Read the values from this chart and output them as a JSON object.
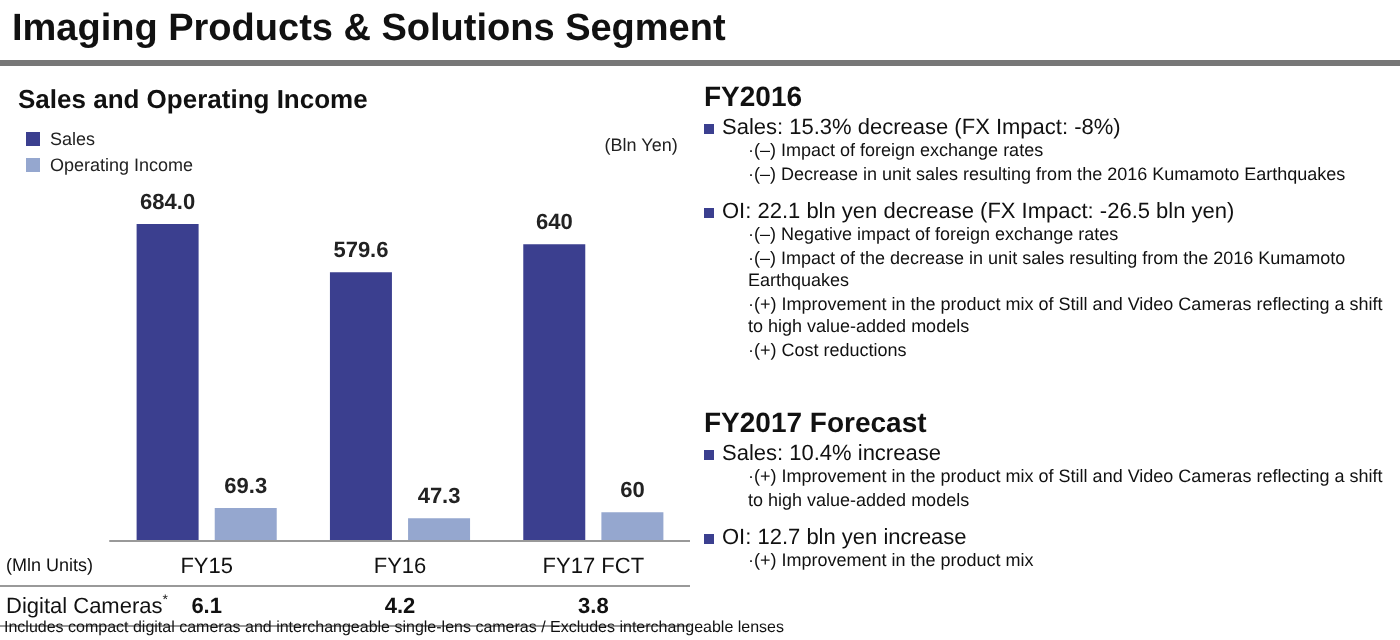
{
  "chart_data": [
    {
      "type": "bar",
      "title": "Imaging Products & Solutions Segment",
      "subtitle": "Sales and Operating Income",
      "ylabel": "(Bln Yen)",
      "categories": [
        "FY15",
        "FY16",
        "FY17 FCT"
      ],
      "series": [
        {
          "name": "Sales",
          "color": "#3b3f8f",
          "values": [
            684.0,
            579.6,
            640
          ],
          "value_labels": [
            "684.0",
            "579.6",
            "640"
          ]
        },
        {
          "name": "Operating Income",
          "color": "#95a7cf",
          "values": [
            69.3,
            47.3,
            60
          ],
          "value_labels": [
            "69.3",
            "47.3",
            "60"
          ]
        }
      ],
      "legend": "top left",
      "annotations": [
        "(Mln Units)",
        "Digital Cameras$^{*}$",
        "6.1",
        "4.2",
        "3.8",
        "Includes compact digital cameras and interchangeable single-lens cameras / Excludes interchangeable lenses"
      ]
    },
    {
      "type": "other",
      "title": "FY2016",
      "subtitle": "Sales: 15.3% decrease (FX Impact:  -8%)",
      "annotations": [
        "·(–) Impact of foreign exchange rates",
        "·(–) Decrease in unit sales resulting from the 2016 Kumamoto Earthquakes"
      ]
    },
    {
      "type": "other",
      "subtitle": "OI: 22.1 bln yen decrease (FX Impact:  -26.5 bln yen)",
      "annotations": [
        "·(–) Negative impact of foreign exchange rates",
        "·(–) Impact of the decrease in unit sales resulting from the 2016 Kumamoto Earthquakes",
        "·(+) Improvement in the product mix of Still and Video Cameras reflecting a shift to high value-added models",
        "·(+) Cost reductions"
      ]
    },
    {
      "type": "other",
      "title": "FY2017 Forecast",
      "subtitle": "Sales: 10.4% increase",
      "annotations": [
        "·(+) Improvement in the product mix of Still and Video Cameras reflecting a shift to high value-added models"
      ]
    },
    {
      "type": "other",
      "subtitle": "OI: 12.7 bln yen increase",
      "annotations": [
        "·(+)  Improvement in the product mix"
      ]
    }
  ]
}
